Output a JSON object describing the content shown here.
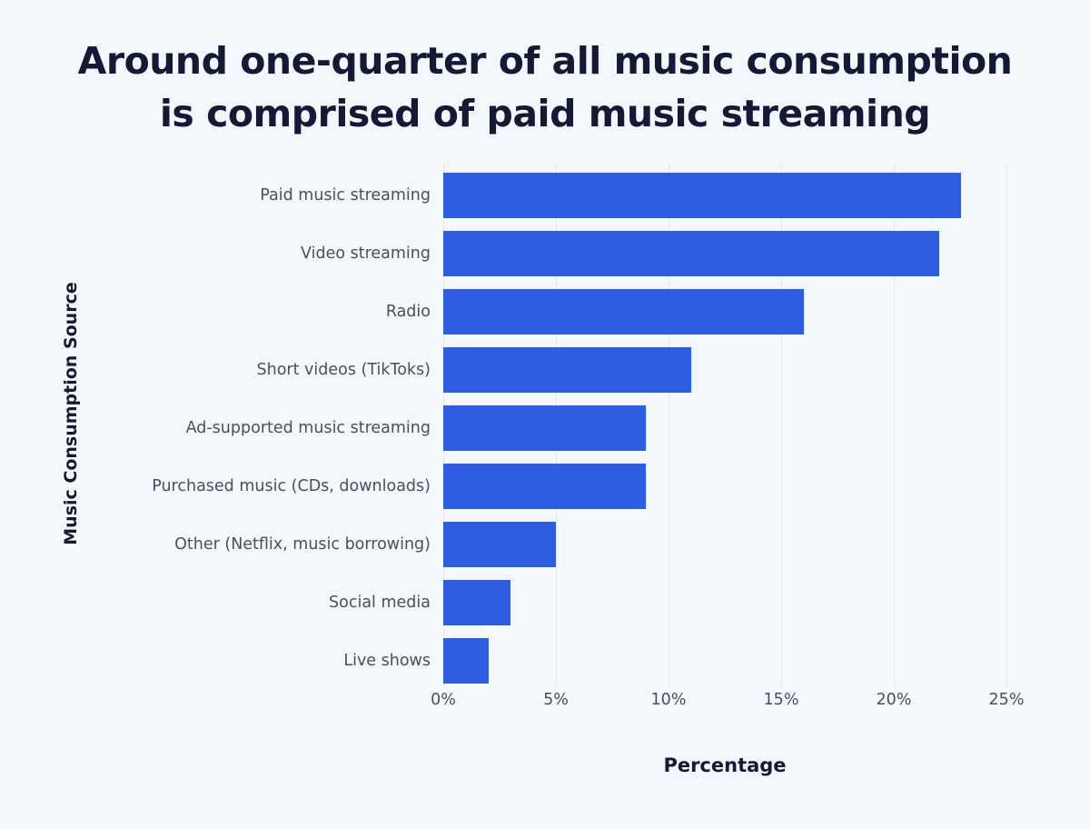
{
  "chart_data": {
    "type": "bar",
    "orientation": "horizontal",
    "title": "Around one-quarter of all music consumption is comprised of paid music streaming",
    "title_lines": [
      "Around one-quarter of all music consumption",
      "is comprised of paid music streaming"
    ],
    "xlabel": "Percentage",
    "ylabel": "Music Consumption Source",
    "categories": [
      "Paid music streaming",
      "Video streaming",
      "Radio",
      "Short videos (TikToks)",
      "Ad-supported music streaming",
      "Purchased music (CDs, downloads)",
      "Other (Netflix, music borrowing)",
      "Social media",
      "Live shows"
    ],
    "values": [
      23,
      22,
      16,
      11,
      9,
      9,
      5,
      3,
      2
    ],
    "unit": "%",
    "xlim": [
      0,
      25
    ],
    "xticks": [
      "0%",
      "5%",
      "10%",
      "15%",
      "20%",
      "25%"
    ],
    "grid": "vertical",
    "bar_color": "#2d5de2",
    "background": "#f3f8fc",
    "legend": null
  }
}
